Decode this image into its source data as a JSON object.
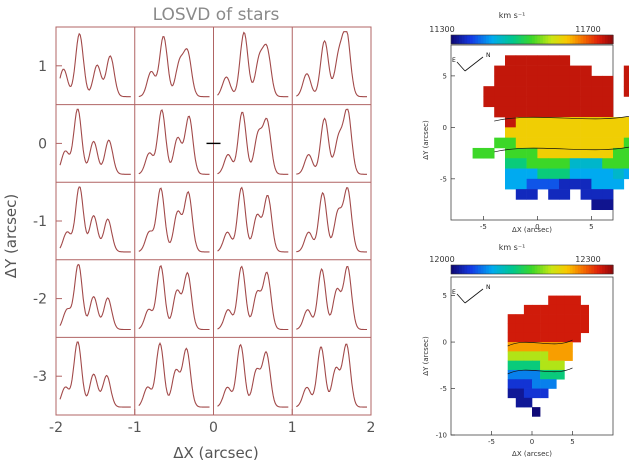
{
  "chart_data": [
    {
      "type": "line",
      "title": "LOSVD of stars",
      "xlabel": "ΔX (arcsec)",
      "ylabel": "ΔY (arcsec)",
      "xlim": [
        -2,
        2
      ],
      "ylim": [
        -3.5,
        1.5
      ],
      "xticks": [
        -2,
        -1,
        0,
        1,
        2
      ],
      "yticks": [
        1,
        0,
        -1,
        -2,
        -3
      ],
      "xtick_labels": [
        "-2",
        "-1",
        "0",
        "1",
        "2"
      ],
      "ytick_labels": [
        "1",
        "0",
        "-1",
        "-2",
        "-3"
      ],
      "grid": {
        "columns": 4,
        "rows": 5
      },
      "line_color": "#a24a4a",
      "frame_color": "#b06464",
      "panels": [
        {
          "row": 0,
          "col": 0,
          "profile": [
            [
              -0.9,
              0.42
            ],
            [
              -0.45,
              0.96
            ],
            [
              0.05,
              0.48
            ],
            [
              0.42,
              0.62
            ]
          ]
        },
        {
          "row": 0,
          "col": 1,
          "profile": [
            [
              -0.65,
              0.38
            ],
            [
              -0.3,
              0.92
            ],
            [
              0.15,
              0.5
            ],
            [
              0.38,
              0.66
            ]
          ]
        },
        {
          "row": 0,
          "col": 2,
          "profile": [
            [
              -0.75,
              0.3
            ],
            [
              -0.25,
              0.98
            ],
            [
              0.18,
              0.55
            ],
            [
              0.4,
              0.7
            ]
          ]
        },
        {
          "row": 0,
          "col": 3,
          "profile": [
            [
              -0.7,
              0.35
            ],
            [
              -0.2,
              0.85
            ],
            [
              0.2,
              0.6
            ],
            [
              0.42,
              0.96
            ]
          ]
        },
        {
          "row": 1,
          "col": 0,
          "profile": [
            [
              -0.85,
              0.35
            ],
            [
              -0.5,
              1.0
            ],
            [
              -0.05,
              0.5
            ],
            [
              0.38,
              0.52
            ]
          ]
        },
        {
          "row": 1,
          "col": 1,
          "profile": [
            [
              -0.7,
              0.32
            ],
            [
              -0.35,
              0.98
            ],
            [
              0.1,
              0.55
            ],
            [
              0.42,
              0.88
            ]
          ]
        },
        {
          "row": 1,
          "col": 2,
          "profile": [
            [
              -0.7,
              0.3
            ],
            [
              -0.3,
              0.95
            ],
            [
              0.15,
              0.6
            ],
            [
              0.4,
              0.8
            ]
          ]
        },
        {
          "row": 1,
          "col": 3,
          "profile": [
            [
              -0.65,
              0.3
            ],
            [
              -0.2,
              0.85
            ],
            [
              0.2,
              0.55
            ],
            [
              0.45,
              0.97
            ]
          ]
        },
        {
          "row": 2,
          "col": 0,
          "profile": [
            [
              -0.8,
              0.3
            ],
            [
              -0.45,
              1.0
            ],
            [
              -0.05,
              0.55
            ],
            [
              0.35,
              0.5
            ]
          ]
        },
        {
          "row": 2,
          "col": 1,
          "profile": [
            [
              -0.7,
              0.3
            ],
            [
              -0.38,
              0.97
            ],
            [
              0.1,
              0.6
            ],
            [
              0.4,
              0.9
            ]
          ]
        },
        {
          "row": 2,
          "col": 2,
          "profile": [
            [
              -0.72,
              0.3
            ],
            [
              -0.32,
              0.98
            ],
            [
              0.12,
              0.55
            ],
            [
              0.42,
              0.85
            ]
          ]
        },
        {
          "row": 2,
          "col": 3,
          "profile": [
            [
              -0.65,
              0.3
            ],
            [
              -0.25,
              0.9
            ],
            [
              0.18,
              0.6
            ],
            [
              0.45,
              0.95
            ]
          ]
        },
        {
          "row": 3,
          "col": 0,
          "profile": [
            [
              -0.8,
              0.3
            ],
            [
              -0.48,
              1.0
            ],
            [
              -0.05,
              0.5
            ],
            [
              0.35,
              0.48
            ]
          ]
        },
        {
          "row": 3,
          "col": 1,
          "profile": [
            [
              -0.72,
              0.3
            ],
            [
              -0.38,
              0.97
            ],
            [
              0.08,
              0.58
            ],
            [
              0.38,
              0.85
            ]
          ]
        },
        {
          "row": 3,
          "col": 2,
          "profile": [
            [
              -0.7,
              0.3
            ],
            [
              -0.32,
              0.96
            ],
            [
              0.12,
              0.55
            ],
            [
              0.4,
              0.85
            ]
          ]
        },
        {
          "row": 3,
          "col": 3,
          "profile": [
            [
              -0.68,
              0.3
            ],
            [
              -0.28,
              0.92
            ],
            [
              0.15,
              0.6
            ],
            [
              0.45,
              0.95
            ]
          ]
        },
        {
          "row": 4,
          "col": 0,
          "profile": [
            [
              -0.85,
              0.3
            ],
            [
              -0.5,
              1.0
            ],
            [
              -0.05,
              0.5
            ],
            [
              0.32,
              0.48
            ]
          ]
        },
        {
          "row": 4,
          "col": 1,
          "profile": [
            [
              -0.75,
              0.3
            ],
            [
              -0.4,
              0.97
            ],
            [
              0.05,
              0.55
            ],
            [
              0.35,
              0.88
            ]
          ]
        },
        {
          "row": 4,
          "col": 2,
          "profile": [
            [
              -0.72,
              0.3
            ],
            [
              -0.35,
              0.95
            ],
            [
              0.1,
              0.55
            ],
            [
              0.38,
              0.82
            ]
          ]
        },
        {
          "row": 4,
          "col": 3,
          "profile": [
            [
              -0.7,
              0.3
            ],
            [
              -0.3,
              0.92
            ],
            [
              0.12,
              0.58
            ],
            [
              0.42,
              0.95
            ]
          ]
        }
      ],
      "center_marker": {
        "x": 0,
        "y": 0
      }
    },
    {
      "type": "heatmap",
      "units": "km s⁻¹",
      "colorbar_min": "11300",
      "colorbar_max": "11700",
      "range": [
        11300,
        11700
      ],
      "xlabel": "ΔX (arcsec)",
      "ylabel": "ΔY (arcsec)",
      "xlim": [
        -8,
        7
      ],
      "ylim": [
        -9,
        8
      ],
      "xticks": [
        "-5",
        "0",
        "5"
      ],
      "yticks": [
        "5",
        "0",
        "-5"
      ],
      "yticks_values": [
        5,
        0,
        -5
      ],
      "xticks_values": [
        -5,
        0,
        5
      ],
      "compass": {
        "north": "N",
        "east": "E"
      },
      "pixels": {
        "x_start": -6,
        "y_start": 7,
        "rows": [
          "...cccccc.......",
          "..ccccccccc...cc",
          "..ccccccccccc.c.",
          ".cccccccccccc.cc",
          ".cccccccccccc...",
          "..ccccccccccc...",
          "...cbbbbbbbbbbb.",
          "...bbbbbbbbbbbb.",
          "..aabbbbbbbbbba.",
          "aa.aaabbbbbbbaa.",
          "...ffaaaadddaaa.",
          "...gggfffggggdgg",
          "...gghhhiiiggg..",
          "....ii.ii.iii...",
          "...........jj..."
        ],
        "legend": {
          "a": 11500,
          "b": 11580,
          "c": 11680,
          "d": 11420,
          "f": 11460,
          "g": 11400,
          "h": 11360,
          "i": 11330,
          "j": 11310
        }
      }
    },
    {
      "type": "heatmap",
      "units": "km s⁻¹",
      "colorbar_min": "12000",
      "colorbar_max": "12300",
      "range": [
        12000,
        12300
      ],
      "xlabel": "ΔX (arcsec)",
      "ylabel": "ΔY (arcsec)",
      "xlim": [
        -10,
        10
      ],
      "ylim": [
        -10,
        7
      ],
      "xticks": [
        "-5",
        "0",
        "5"
      ],
      "yticks": [
        "5",
        "0",
        "-5",
        "-10"
      ],
      "yticks_values": [
        5,
        0,
        -5,
        -10
      ],
      "xticks_values": [
        -5,
        0,
        5
      ],
      "compass": {
        "north": "N",
        "east": "E"
      },
      "pixels": {
        "x_start": -5,
        "y_start": 5,
        "rows": [
          ".......cccc",
          "....cccccccc",
          "..cccccccccc",
          "..cccccccccc",
          "..ccccccccc.",
          "..bbbbbbbb..",
          "..aaaaabbb..",
          "..ddddaaa...",
          "..ggggddd...",
          "..hhhggg....",
          "..iihhh.....",
          "...ii.......",
          ".....j......"
        ],
        "legend": {
          "a": 12180,
          "b": 12230,
          "c": 12280,
          "d": 12120,
          "g": 12060,
          "h": 12030,
          "i": 12010,
          "j": 12000
        }
      }
    }
  ]
}
